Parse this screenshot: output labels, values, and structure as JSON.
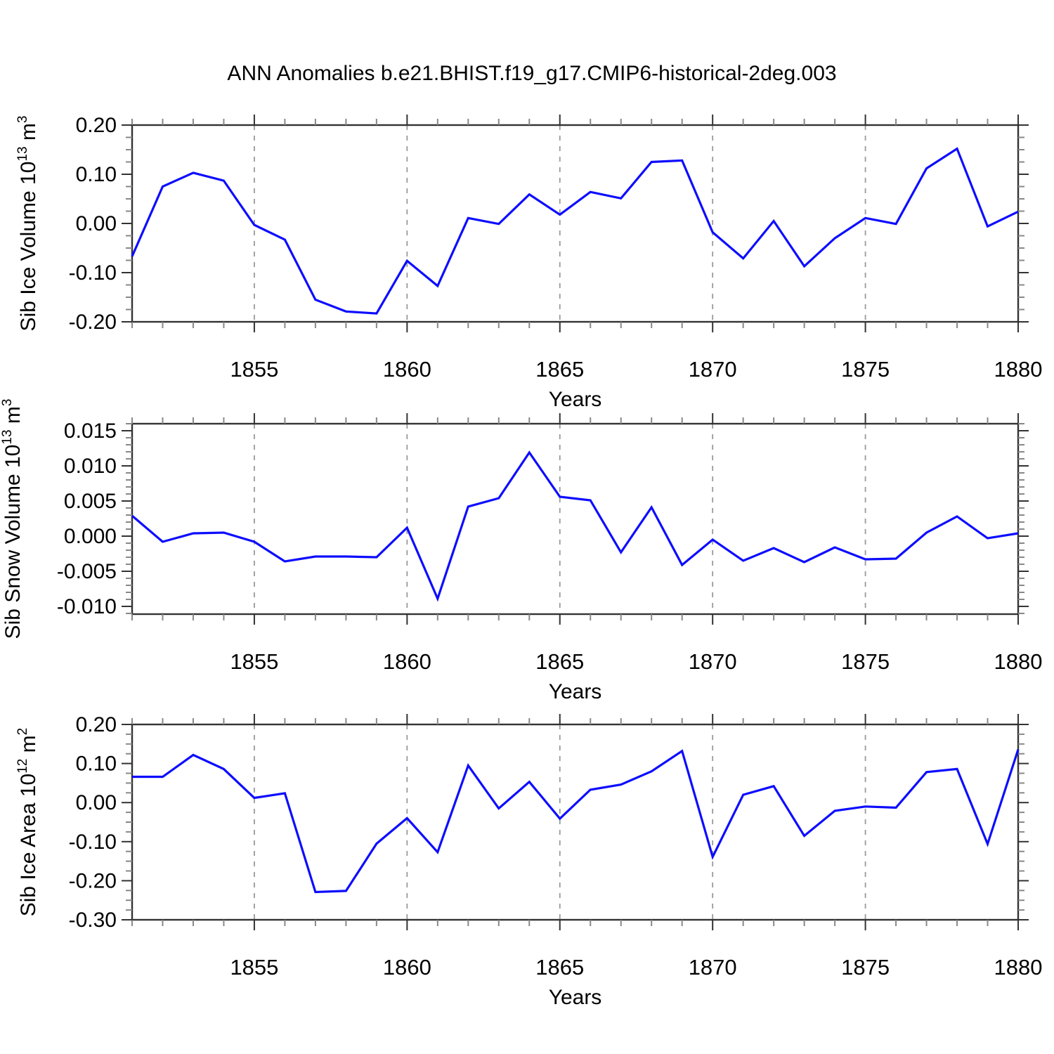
{
  "title": "ANN Anomalies b.e21.BHIST.f19_g17.CMIP6-historical-2deg.003",
  "style": {
    "line_color": "#0d0dff",
    "frame_color": "#333333",
    "major_tick_color": "#333333",
    "minor_tick_color": "#888888",
    "grid_color": "#9a9a9a",
    "text_color": "#000000",
    "background": "#ffffff"
  },
  "x_axis": {
    "label": "Years",
    "range": [
      1851,
      1880
    ],
    "years": [
      1851,
      1852,
      1853,
      1854,
      1855,
      1856,
      1857,
      1858,
      1859,
      1860,
      1861,
      1862,
      1863,
      1864,
      1865,
      1866,
      1867,
      1868,
      1869,
      1870,
      1871,
      1872,
      1873,
      1874,
      1875,
      1876,
      1877,
      1878,
      1879,
      1880
    ],
    "major_tick_years": [
      1855,
      1860,
      1865,
      1870,
      1875,
      1880
    ],
    "major_tick_labels": [
      "1855",
      "1860",
      "1865",
      "1870",
      "1875",
      "1880"
    ],
    "minor_tick_step_years": 1,
    "gridline_years": [
      1855,
      1860,
      1865,
      1870,
      1875
    ]
  },
  "chart_data": [
    {
      "type": "line",
      "panel": "sib-ice-volume",
      "ylabel": "Sib Ice Volume 10^13 m^3",
      "ylabel_parts": [
        {
          "text": "Sib Ice Volume 10",
          "sup": false
        },
        {
          "text": "13",
          "sup": true
        },
        {
          "text": " m",
          "sup": false
        },
        {
          "text": "3",
          "sup": true
        }
      ],
      "xlabel": "Years",
      "ylim": [
        -0.2,
        0.2
      ],
      "ytick_values": [
        0.2,
        0.1,
        0.0,
        -0.1,
        -0.2
      ],
      "ytick_labels": [
        "0.20",
        "0.10",
        "0.00",
        "-0.10",
        "-0.20"
      ],
      "y_minor_step": 0.025,
      "grid": true,
      "legend": "none",
      "values": [
        -0.067,
        0.075,
        0.103,
        0.087,
        -0.003,
        -0.033,
        -0.155,
        -0.179,
        -0.183,
        -0.076,
        -0.127,
        0.011,
        -0.001,
        0.059,
        0.018,
        0.064,
        0.051,
        0.125,
        0.128,
        -0.018,
        -0.071,
        0.005,
        -0.087,
        -0.03,
        0.011,
        -0.001,
        0.112,
        0.152,
        -0.006,
        0.024
      ]
    },
    {
      "type": "line",
      "panel": "sib-snow-volume",
      "ylabel": "Sib Snow Volume 10^13 m^3",
      "ylabel_parts": [
        {
          "text": "Sib Snow Volume 10",
          "sup": false
        },
        {
          "text": "13",
          "sup": true
        },
        {
          "text": " m",
          "sup": false
        },
        {
          "text": "3",
          "sup": true
        }
      ],
      "xlabel": "Years",
      "ylim": [
        -0.0111,
        0.016
      ],
      "ytick_values": [
        0.015,
        0.01,
        0.005,
        0.0,
        -0.005,
        -0.01
      ],
      "ytick_labels": [
        "0.015",
        "0.010",
        "0.005",
        "0.000",
        "-0.005",
        "-0.010"
      ],
      "y_minor_step": 0.001,
      "grid": true,
      "legend": "none",
      "values": [
        0.0029,
        -0.0008,
        0.0004,
        0.0005,
        -0.0008,
        -0.0036,
        -0.0029,
        -0.0029,
        -0.003,
        0.0012,
        -0.0089,
        0.0042,
        0.0054,
        0.0119,
        0.0056,
        0.0051,
        -0.0023,
        0.0041,
        -0.0041,
        -0.0005,
        -0.0035,
        -0.0017,
        -0.0037,
        -0.0016,
        -0.0033,
        -0.0032,
        0.0005,
        0.0028,
        -0.0003,
        0.0004
      ]
    },
    {
      "type": "line",
      "panel": "sib-ice-area",
      "ylabel": "Sib Ice Area 10^12 m^2",
      "ylabel_parts": [
        {
          "text": "Sib Ice Area 10",
          "sup": false
        },
        {
          "text": "12",
          "sup": true
        },
        {
          "text": " m",
          "sup": false
        },
        {
          "text": "2",
          "sup": true
        }
      ],
      "xlabel": "Years",
      "ylim": [
        -0.3,
        0.2
      ],
      "ytick_values": [
        0.2,
        0.1,
        0.0,
        -0.1,
        -0.2,
        -0.3
      ],
      "ytick_labels": [
        "0.20",
        "0.10",
        "0.00",
        "-0.10",
        "-0.20",
        "-0.30"
      ],
      "y_minor_step": 0.025,
      "grid": true,
      "legend": "none",
      "values": [
        0.066,
        0.066,
        0.122,
        0.086,
        0.012,
        0.024,
        -0.229,
        -0.226,
        -0.105,
        -0.04,
        -0.127,
        0.095,
        -0.015,
        0.053,
        -0.041,
        0.033,
        0.046,
        0.08,
        0.132,
        -0.139,
        0.02,
        0.042,
        -0.085,
        -0.021,
        -0.01,
        -0.013,
        0.078,
        0.086,
        -0.106,
        0.136
      ]
    }
  ]
}
